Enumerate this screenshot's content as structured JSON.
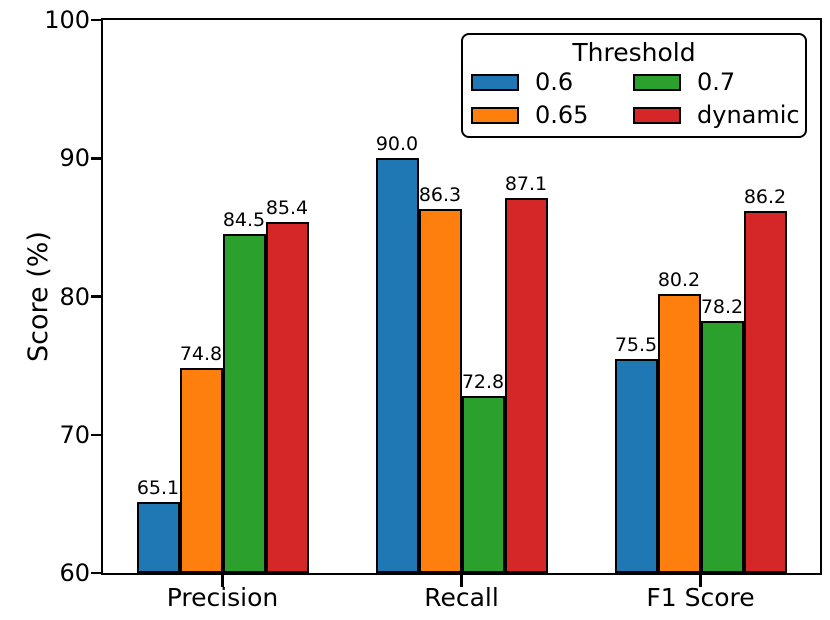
{
  "chart_data": {
    "type": "bar",
    "title": "",
    "ylabel": "Score (%)",
    "xlabel": "",
    "ylim": [
      60,
      100
    ],
    "yticks": [
      60,
      70,
      80,
      90,
      100
    ],
    "grid": false,
    "categories": [
      "Precision",
      "Recall",
      "F1 Score"
    ],
    "series": [
      {
        "name": "0.6",
        "color": "#1f77b4",
        "values": [
          65.1,
          90.0,
          75.5
        ]
      },
      {
        "name": "0.65",
        "color": "#ff7f0e",
        "values": [
          74.8,
          86.3,
          80.2
        ]
      },
      {
        "name": "0.7",
        "color": "#2ca02c",
        "values": [
          84.5,
          72.8,
          78.2
        ]
      },
      {
        "name": "dynamic",
        "color": "#d62728",
        "values": [
          85.4,
          87.1,
          86.2
        ]
      }
    ],
    "value_label_format": "one-decimal",
    "bar_edge_color": "#000000",
    "legend": {
      "title": "Threshold",
      "position": "upper right",
      "columns": 2
    }
  }
}
